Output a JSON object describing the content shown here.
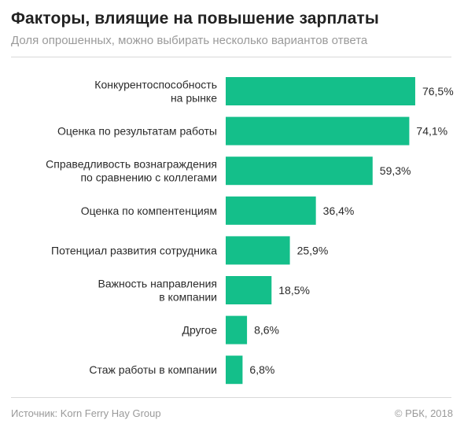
{
  "header": {
    "title": "Факторы, влиящие на повышение зарплаты",
    "subtitle": "Доля опрошенных, можно выбирать несколько вариантов ответа"
  },
  "footer": {
    "source": "Источник: Korn Ferry Hay Group",
    "copyright": "© РБК, 2018"
  },
  "chart_data": {
    "type": "bar",
    "orientation": "horizontal",
    "title": "Факторы, влиящие на повышение зарплаты",
    "subtitle": "Доля опрошенных, можно выбирать несколько вариантов ответа",
    "xlabel": "",
    "ylabel": "",
    "xlim": [
      0,
      100
    ],
    "grid": false,
    "bar_color": "#14bf8a",
    "categories": [
      [
        "Конкурентоспособность",
        "на рынке"
      ],
      [
        "Оценка по результатам работы"
      ],
      [
        "Справедливость вознаграждения",
        "по сравнению с коллегами"
      ],
      [
        "Оценка по компентенциям"
      ],
      [
        "Потенциал развития сотрудника"
      ],
      [
        "Важность направления",
        "в компании"
      ],
      [
        "Другое"
      ],
      [
        "Стаж работы в компании"
      ]
    ],
    "values": [
      76.5,
      74.1,
      59.3,
      36.4,
      25.9,
      18.5,
      8.6,
      6.8
    ],
    "value_labels": [
      "76,5%",
      "74,1%",
      "59,3%",
      "36,4%",
      "25,9%",
      "18,5%",
      "8,6%",
      "6,8%"
    ]
  }
}
